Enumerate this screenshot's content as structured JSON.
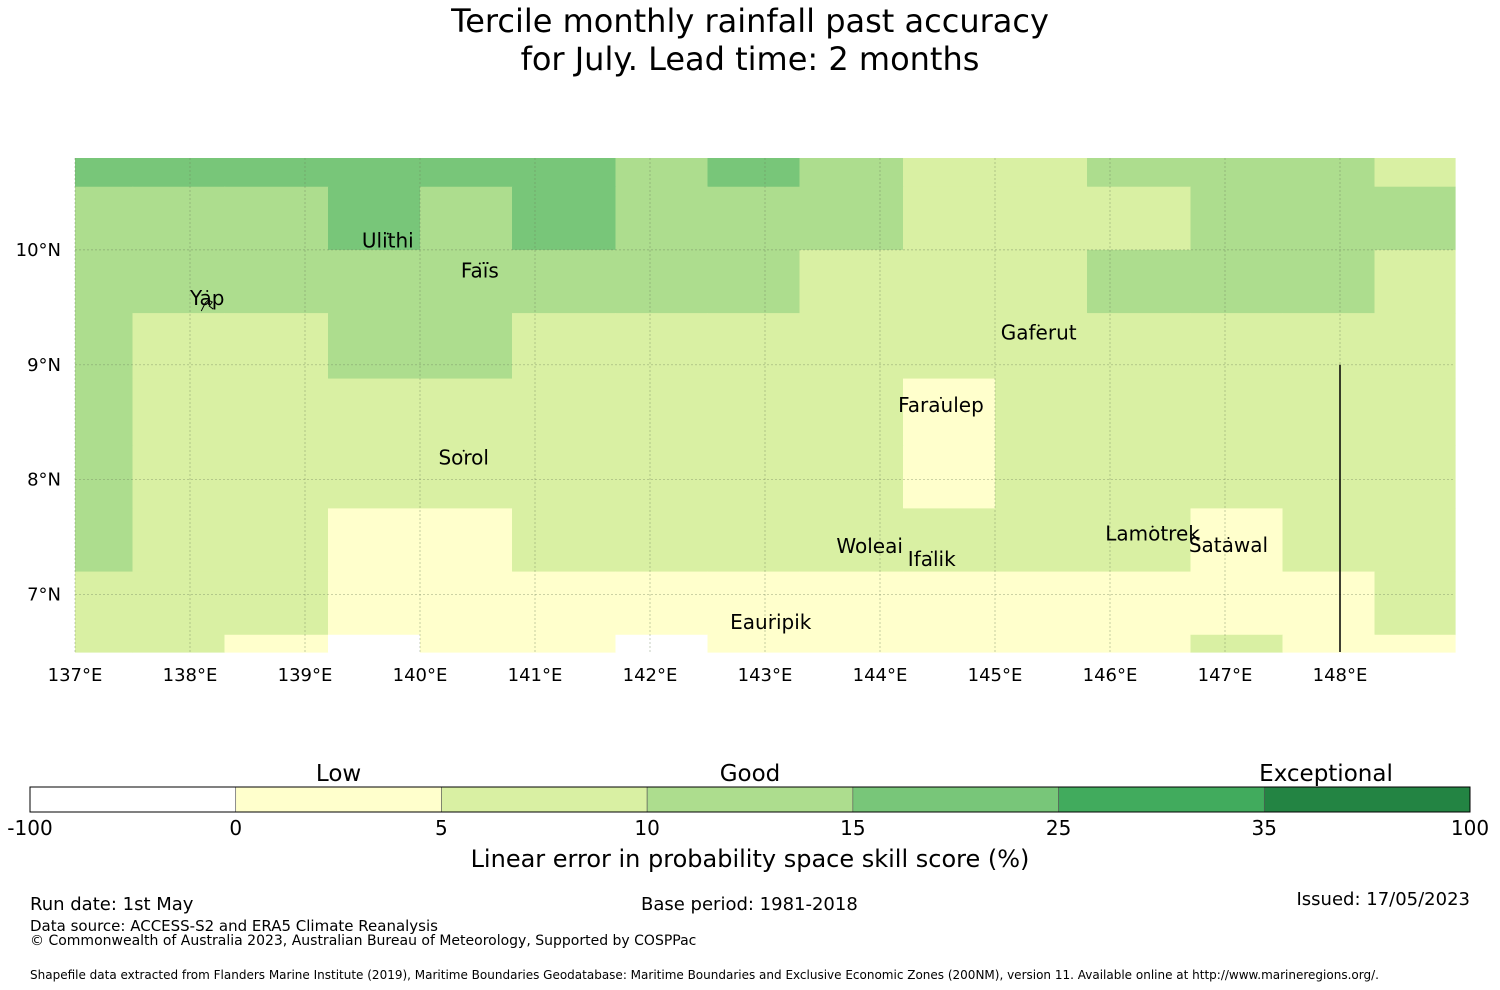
{
  "title": {
    "line1": "Tercile monthly rainfall past accuracy",
    "line2": "for July. Lead time: 2 months"
  },
  "map": {
    "lon_range": [
      137.0,
      149.0
    ],
    "lat_range": [
      6.5,
      10.8
    ],
    "x_ticks": [
      {
        "value": 137,
        "label": "137°E"
      },
      {
        "value": 138,
        "label": "138°E"
      },
      {
        "value": 139,
        "label": "139°E"
      },
      {
        "value": 140,
        "label": "140°E"
      },
      {
        "value": 141,
        "label": "141°E"
      },
      {
        "value": 142,
        "label": "142°E"
      },
      {
        "value": 143,
        "label": "143°E"
      },
      {
        "value": 144,
        "label": "144°E"
      },
      {
        "value": 145,
        "label": "145°E"
      },
      {
        "value": 146,
        "label": "146°E"
      },
      {
        "value": 147,
        "label": "147°E"
      },
      {
        "value": 148,
        "label": "148°E"
      }
    ],
    "y_ticks": [
      {
        "value": 10,
        "label": "10°N"
      },
      {
        "value": 9,
        "label": "9°N"
      },
      {
        "value": 8,
        "label": "8°N"
      },
      {
        "value": 7,
        "label": "7°N"
      }
    ],
    "grid_lines": true,
    "boundary_line": {
      "lon": 148.0,
      "lat_from": 6.5,
      "lat_to": 9.0
    },
    "colors": [
      "#ffffff",
      "#ffffcc",
      "#d9f0a3",
      "#addd8e",
      "#78c679",
      "#41ab5d",
      "#238443"
    ],
    "cell_lons": [
      137.0,
      137.5,
      138.3,
      139.2,
      140.0,
      140.8,
      141.7,
      142.5,
      143.3,
      144.2,
      145.0,
      145.8,
      146.7,
      147.5,
      148.3,
      149.0
    ],
    "cell_lats": [
      10.8,
      10.55,
      10.0,
      9.45,
      8.88,
      8.3,
      7.75,
      7.2,
      6.65,
      6.5
    ],
    "category_grid": [
      [
        4,
        4,
        4,
        4,
        4,
        4,
        3,
        4,
        3,
        2,
        2,
        3,
        3,
        3,
        2
      ],
      [
        3,
        3,
        3,
        4,
        3,
        4,
        3,
        3,
        3,
        2,
        2,
        2,
        3,
        3,
        3
      ],
      [
        3,
        3,
        3,
        3,
        3,
        3,
        3,
        3,
        2,
        2,
        2,
        3,
        3,
        3,
        2
      ],
      [
        3,
        2,
        2,
        3,
        3,
        2,
        2,
        2,
        2,
        2,
        2,
        2,
        2,
        2,
        2
      ],
      [
        3,
        2,
        2,
        2,
        2,
        2,
        2,
        2,
        2,
        1,
        2,
        2,
        2,
        2,
        2
      ],
      [
        3,
        2,
        2,
        2,
        2,
        2,
        2,
        2,
        2,
        1,
        2,
        2,
        2,
        2,
        2
      ],
      [
        3,
        2,
        2,
        1,
        1,
        2,
        2,
        2,
        2,
        2,
        2,
        2,
        1,
        2,
        2
      ],
      [
        2,
        2,
        2,
        1,
        1,
        1,
        1,
        1,
        1,
        1,
        1,
        1,
        1,
        1,
        2
      ],
      [
        2,
        2,
        1,
        0,
        1,
        1,
        0,
        1,
        1,
        1,
        1,
        1,
        2,
        1,
        1
      ]
    ],
    "places": [
      {
        "name": "Yap",
        "lon": 138.15,
        "lat": 9.52
      },
      {
        "name": "Ulithi",
        "lon": 139.72,
        "lat": 10.02
      },
      {
        "name": "Faïs",
        "lon": 140.52,
        "lat": 9.76
      },
      {
        "name": "Gaferut",
        "lon": 145.38,
        "lat": 9.22
      },
      {
        "name": "Faraulep",
        "lon": 144.53,
        "lat": 8.59
      },
      {
        "name": "Sorol",
        "lon": 140.38,
        "lat": 8.13
      },
      {
        "name": "Woleai",
        "lon": 143.91,
        "lat": 7.36
      },
      {
        "name": "Ifalik",
        "lon": 144.45,
        "lat": 7.25
      },
      {
        "name": "Lamotrek",
        "lon": 146.37,
        "lat": 7.47
      },
      {
        "name": "Satawal",
        "lon": 147.03,
        "lat": 7.37
      },
      {
        "name": "Eauripik",
        "lon": 143.05,
        "lat": 6.7
      }
    ]
  },
  "legend": {
    "category_labels": [
      "Low",
      "Good",
      "Exceptional"
    ],
    "bins": [
      {
        "min": -100,
        "max": 0,
        "color": "#ffffff"
      },
      {
        "min": 0,
        "max": 5,
        "color": "#ffffcc"
      },
      {
        "min": 5,
        "max": 10,
        "color": "#d9f0a3"
      },
      {
        "min": 10,
        "max": 15,
        "color": "#addd8e"
      },
      {
        "min": 15,
        "max": 25,
        "color": "#78c679"
      },
      {
        "min": 25,
        "max": 35,
        "color": "#41ab5d"
      },
      {
        "min": 35,
        "max": 100,
        "color": "#238443"
      }
    ],
    "tick_labels": [
      "-100",
      "0",
      "5",
      "10",
      "15",
      "25",
      "35",
      "100"
    ],
    "axis_label": "Linear error in probability space skill score (%)"
  },
  "footer": {
    "run_date": "Run date: 1st May",
    "base_period": "Base period: 1981-2018",
    "issued": "Issued: 17/05/2023",
    "data_source": "Data source: ACCESS-S2 and ERA5 Climate Reanalysis",
    "copyright": "© Commonwealth of Australia 2023, Australian Bureau of Meteorology, Supported by COSPPac",
    "shapefile": "Shapefile data extracted from Flanders Marine Institute (2019), Maritime Boundaries Geodatabase: Maritime Boundaries and Exclusive Economic Zones (200NM), version 11. Available online at http://www.marineregions.org/."
  }
}
